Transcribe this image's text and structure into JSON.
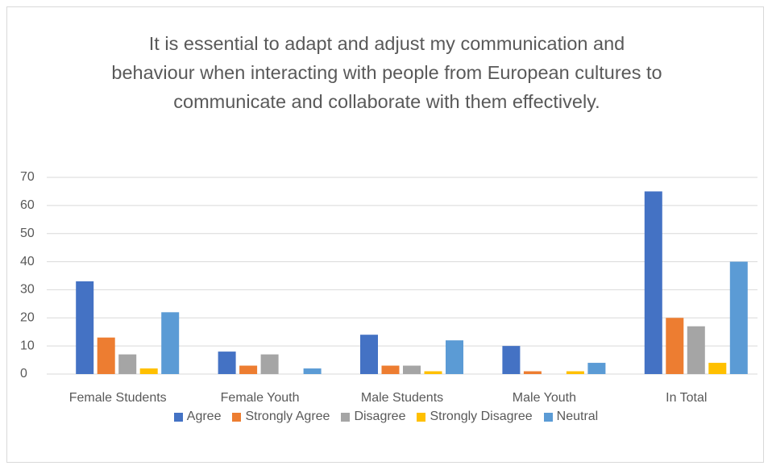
{
  "chart_data": {
    "type": "bar",
    "title": "It is essential to adapt and adjust my communication and behaviour when interacting with people from European cultures to communicate and collaborate with them effectively.",
    "categories": [
      "Female Students",
      "Female Youth",
      "Male Students",
      "Male Youth",
      "In Total"
    ],
    "series": [
      {
        "name": "Agree",
        "color": "#4472c4",
        "values": [
          33,
          8,
          14,
          10,
          65
        ]
      },
      {
        "name": "Strongly Agree",
        "color": "#ed7d31",
        "values": [
          13,
          3,
          3,
          1,
          20
        ]
      },
      {
        "name": "Disagree",
        "color": "#a5a5a5",
        "values": [
          7,
          7,
          3,
          0,
          17
        ]
      },
      {
        "name": "Strongly Disagree",
        "color": "#ffc000",
        "values": [
          2,
          0,
          1,
          1,
          4
        ]
      },
      {
        "name": "Neutral",
        "color": "#5b9bd5",
        "values": [
          22,
          2,
          12,
          4,
          40
        ]
      }
    ],
    "ylim": [
      0,
      70
    ],
    "yticks": [
      0,
      10,
      20,
      30,
      40,
      50,
      60,
      70
    ],
    "grid": true,
    "legend": "bottom"
  }
}
